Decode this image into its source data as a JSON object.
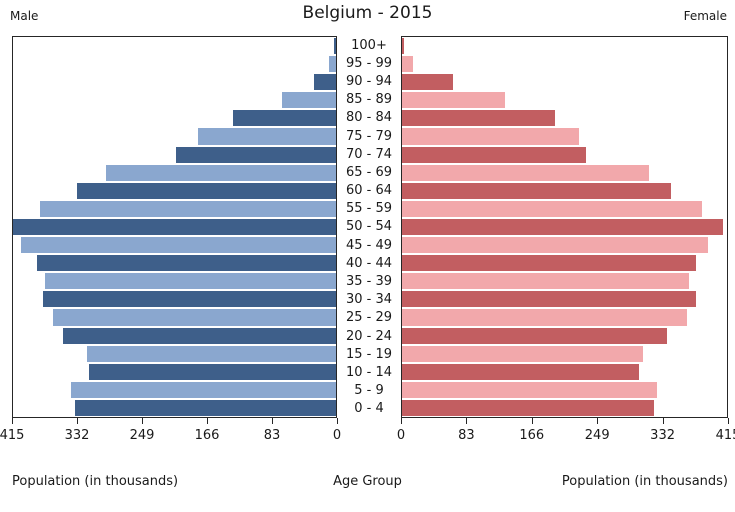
{
  "headers": {
    "male": "Male",
    "female": "Female"
  },
  "captions": {
    "left": "Population (in thousands)",
    "center": "Age Group",
    "right": "Population (in thousands)"
  },
  "colors": {
    "male_dark": "#3E5F8A",
    "male_light": "#8AA7CF",
    "female_dark": "#C25E61",
    "female_light": "#F2A8AB",
    "axis": "#262626",
    "background": "#FFFFFF"
  },
  "chart_data": {
    "type": "bar",
    "subtype": "population_pyramid",
    "title": "Belgium - 2015",
    "xlabel": "Population (in thousands)",
    "ylabel": "Age Group",
    "unit": "thousands",
    "axis_max": 415,
    "ticks_male": [
      415,
      332,
      249,
      166,
      83,
      0
    ],
    "ticks_female": [
      0,
      83,
      166,
      249,
      332,
      415
    ],
    "legend": "none",
    "grid": false,
    "age_groups": [
      "100+",
      "95 - 99",
      "90 - 94",
      "85 - 89",
      "80 - 84",
      "75 - 79",
      "70 - 74",
      "65 - 69",
      "60 - 64",
      "55 - 59",
      "50 - 54",
      "45 - 49",
      "40 - 44",
      "35 - 39",
      "30 - 34",
      "25 - 29",
      "20 - 24",
      "15 - 19",
      "10 - 14",
      "5 - 9",
      "0 - 4"
    ],
    "series": [
      {
        "name": "Male",
        "values": [
          2,
          9,
          28,
          70,
          132,
          177,
          206,
          296,
          333,
          380,
          415,
          405,
          384,
          374,
          377,
          364,
          351,
          320,
          318,
          341,
          336
        ]
      },
      {
        "name": "Female",
        "values": [
          3,
          14,
          65,
          131,
          195,
          226,
          235,
          316,
          343,
          383,
          410,
          391,
          376,
          367,
          375,
          364,
          339,
          308,
          302,
          325,
          322
        ]
      }
    ]
  }
}
